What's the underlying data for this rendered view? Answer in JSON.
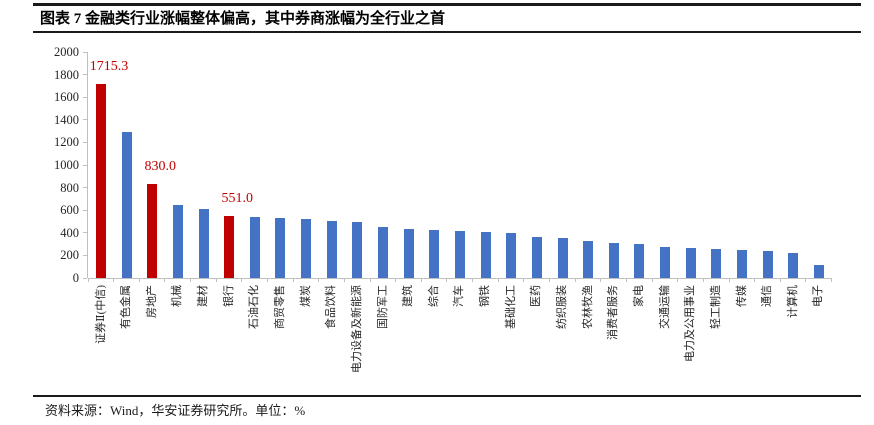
{
  "header": {
    "title": "图表 7 金融类行业涨幅整体偏高，其中券商涨幅为全行业之首"
  },
  "chart_data": {
    "type": "bar",
    "title": "图表 7 金融类行业涨幅整体偏高，其中券商涨幅为全行业之首",
    "categories": [
      "证券Ⅱ(中信)",
      "有色金属",
      "房地产",
      "机械",
      "建材",
      "银行",
      "石油石化",
      "商贸零售",
      "煤炭",
      "食品饮料",
      "电力设备及新能源",
      "国防军工",
      "建筑",
      "综合",
      "汽车",
      "钢铁",
      "基础化工",
      "医药",
      "纺织服装",
      "农林牧渔",
      "消费者服务",
      "家电",
      "交通运输",
      "电力及公用事业",
      "轻工制造",
      "传媒",
      "通信",
      "计算机",
      "电子"
    ],
    "values": [
      1715.3,
      1290,
      830.0,
      650,
      610,
      551.0,
      540,
      533,
      522,
      507,
      496,
      448,
      434,
      421,
      413,
      406,
      402,
      359,
      350,
      331,
      310,
      298,
      274,
      265,
      257,
      248,
      236,
      219,
      119
    ],
    "highlight_indices": [
      0,
      2,
      5
    ],
    "data_labels": {
      "0": "1715.3",
      "2": "830.0",
      "5": "551.0"
    },
    "colors": {
      "highlight": "#C00000",
      "default": "#4472C4",
      "axis": "#BFBFBF",
      "label_text": "#C00000"
    },
    "xlabel": "",
    "ylabel": "",
    "ylim": [
      0,
      2000
    ],
    "ytick_step": 200,
    "grid": false,
    "legend": false,
    "x_labels_rotated_90": true
  },
  "footer": {
    "source": "资料来源：Wind，华安证券研究所。单位：%"
  }
}
